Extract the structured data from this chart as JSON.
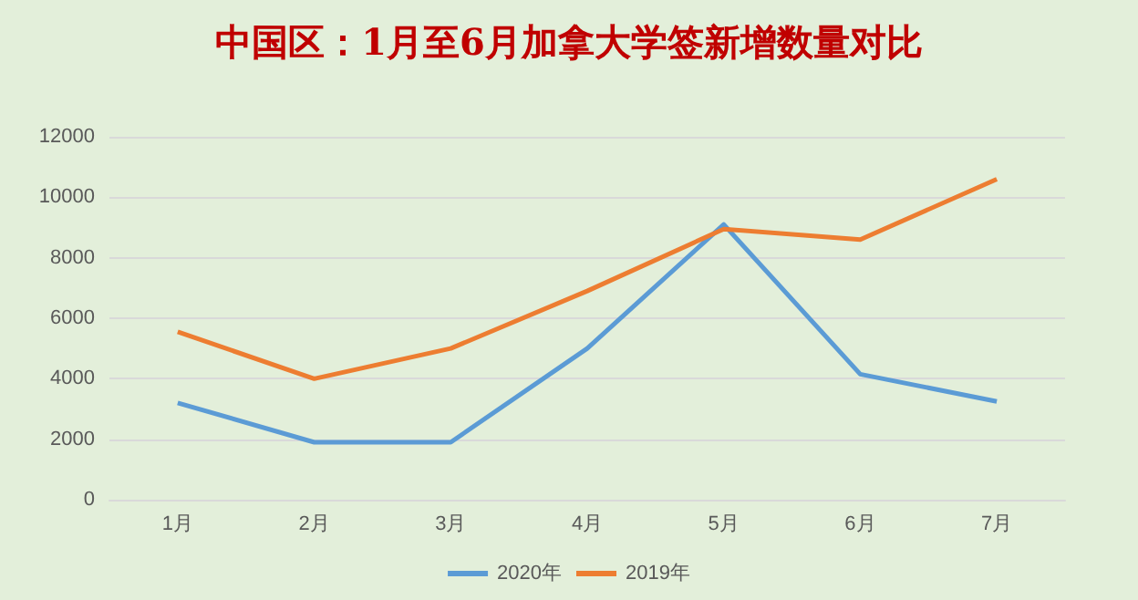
{
  "chart_data": {
    "type": "line",
    "title": "中国区：1月至6月加拿大学签新增数量对比",
    "categories": [
      "1月",
      "2月",
      "3月",
      "4月",
      "5月",
      "6月",
      "7月"
    ],
    "series": [
      {
        "name": "2020年",
        "color": "#5b9bd5",
        "values": [
          3200,
          1900,
          1900,
          5000,
          9100,
          4150,
          3250
        ]
      },
      {
        "name": "2019年",
        "color": "#ed7d31",
        "values": [
          5550,
          4000,
          5000,
          6900,
          8950,
          8600,
          10600
        ]
      }
    ],
    "ylim": [
      0,
      12000
    ],
    "yticks": [
      0,
      2000,
      4000,
      6000,
      8000,
      10000,
      12000
    ],
    "grid": "y",
    "legend": "bottom",
    "marker": "none",
    "line_style": "solid"
  }
}
